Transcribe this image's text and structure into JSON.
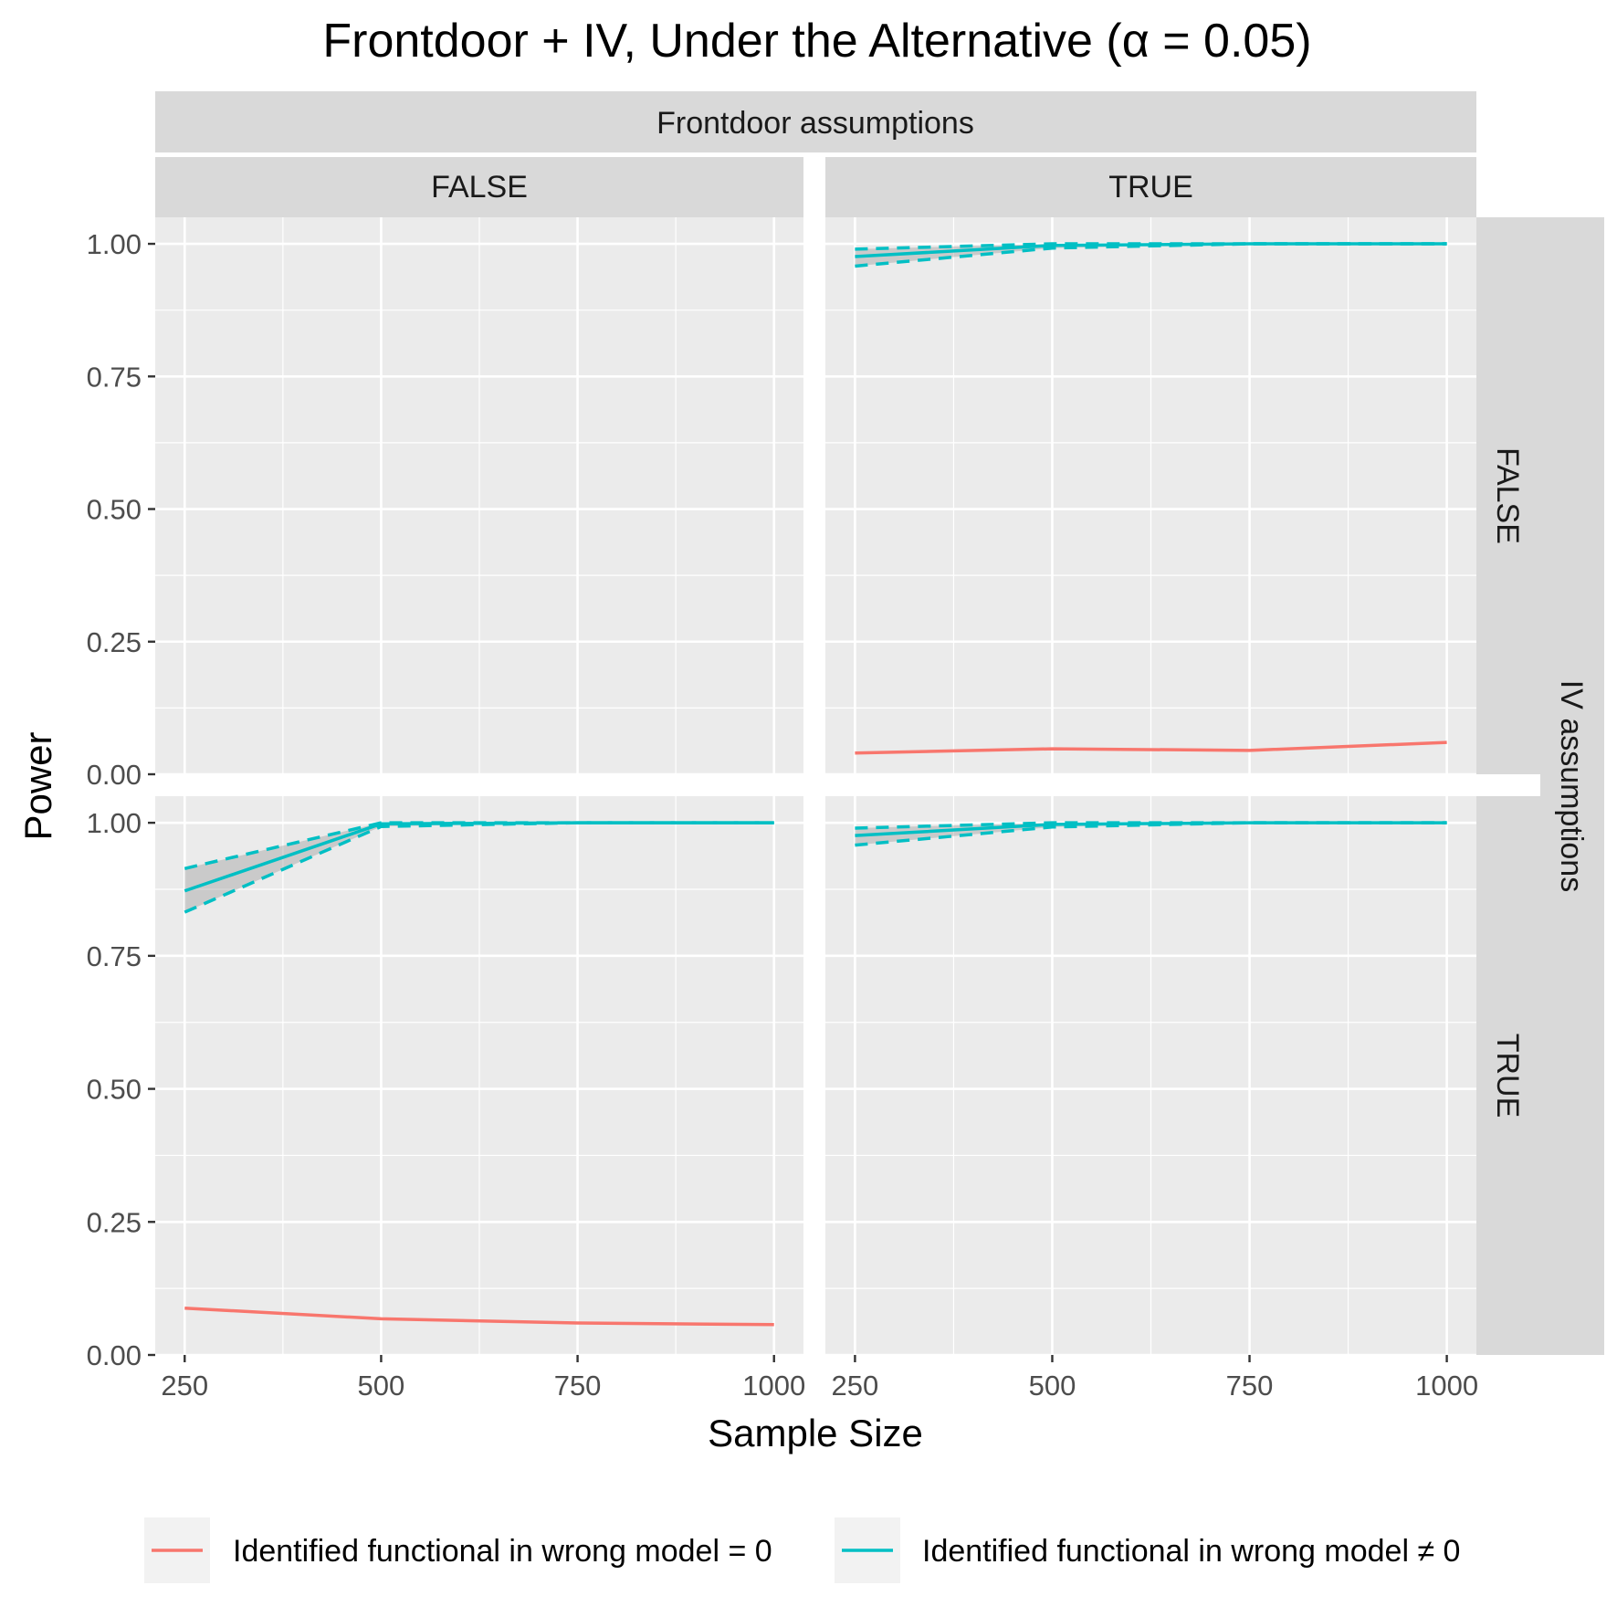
{
  "chart_data": {
    "type": "line",
    "title": "Frontdoor + IV, Under the Alternative (α = 0.05)",
    "xlabel": "Sample Size",
    "ylabel": "Power",
    "x_ticks": [
      "250",
      "500",
      "750",
      "1000"
    ],
    "y_ticks": [
      "0.00",
      "0.25",
      "0.50",
      "0.75",
      "1.00"
    ],
    "xlim": [
      212.5,
      1037.5
    ],
    "ylim": [
      0,
      1.05
    ],
    "facet_col_title": "Frontdoor assumptions",
    "facet_row_title": "IV assumptions",
    "facet_cols": [
      "FALSE",
      "TRUE"
    ],
    "facet_rows": [
      "FALSE",
      "TRUE"
    ],
    "colors": {
      "zero": "#F8766D",
      "nonzero": "#00BFC4",
      "ribbon": "#999999",
      "panel_bg": "#EBEBEB",
      "strip_bg": "#D9D9D9"
    },
    "x": [
      250,
      500,
      750,
      1000
    ],
    "panels": [
      {
        "id": "fdFALSE-ivFALSE",
        "col": "FALSE",
        "row": "FALSE",
        "series": []
      },
      {
        "id": "fdTRUE-ivFALSE",
        "col": "TRUE",
        "row": "FALSE",
        "series": [
          {
            "name": "Identified functional in wrong model = 0",
            "key": "zero",
            "values": [
              0.04,
              0.048,
              0.045,
              0.06
            ]
          },
          {
            "name": "Identified functional in wrong model ≠ 0",
            "key": "nonzero",
            "values": [
              0.976,
              0.997,
              1.0,
              1.0
            ],
            "lower": [
              0.958,
              0.992,
              1.0,
              1.0
            ],
            "upper": [
              0.99,
              1.0,
              1.0,
              1.0
            ]
          }
        ]
      },
      {
        "id": "fdFALSE-ivTRUE",
        "col": "FALSE",
        "row": "TRUE",
        "series": [
          {
            "name": "Identified functional in wrong model = 0",
            "key": "zero",
            "values": [
              0.088,
              0.068,
              0.06,
              0.057
            ]
          },
          {
            "name": "Identified functional in wrong model ≠ 0",
            "key": "nonzero",
            "values": [
              0.872,
              0.998,
              1.0,
              1.0
            ],
            "lower": [
              0.832,
              0.993,
              1.0,
              1.0
            ],
            "upper": [
              0.914,
              1.0,
              1.0,
              1.0
            ]
          }
        ]
      },
      {
        "id": "fdTRUE-ivTRUE",
        "col": "TRUE",
        "row": "TRUE",
        "series": [
          {
            "name": "Identified functional in wrong model = 0",
            "key": "zero",
            "values": []
          },
          {
            "name": "Identified functional in wrong model ≠ 0",
            "key": "nonzero",
            "values": [
              0.976,
              0.997,
              1.0,
              1.0
            ],
            "lower": [
              0.958,
              0.992,
              1.0,
              1.0
            ],
            "upper": [
              0.99,
              1.0,
              1.0,
              1.0
            ]
          }
        ]
      }
    ],
    "legend": {
      "position": "bottom",
      "entries": [
        {
          "label": "Identified functional in wrong model = 0",
          "key": "zero"
        },
        {
          "label": "Identified functional in wrong model ≠ 0",
          "key": "nonzero"
        }
      ]
    }
  }
}
